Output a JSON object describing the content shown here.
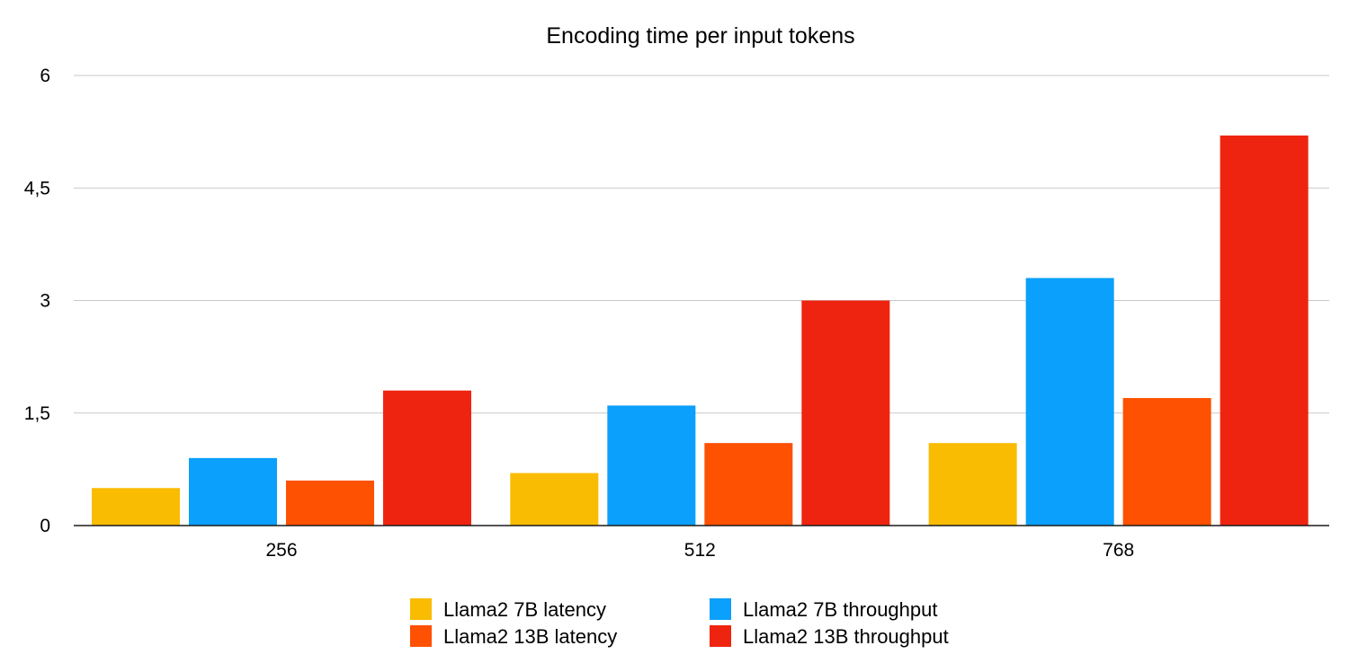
{
  "chart_data": {
    "type": "bar",
    "title": "Encoding time per input tokens",
    "xlabel": "",
    "ylabel": "",
    "categories": [
      "256",
      "512",
      "768"
    ],
    "ylim": [
      0,
      6
    ],
    "y_ticks": [
      {
        "value": 0,
        "label": "0"
      },
      {
        "value": 1.5,
        "label": "1,5"
      },
      {
        "value": 3,
        "label": "3"
      },
      {
        "value": 4.5,
        "label": "4,5"
      },
      {
        "value": 6,
        "label": "6"
      }
    ],
    "grid": true,
    "legend_position": "bottom",
    "series": [
      {
        "name": "Llama2 7B latency",
        "color": "#f9bc02",
        "values": [
          0.5,
          0.7,
          1.1
        ]
      },
      {
        "name": "Llama2 7B throughput",
        "color": "#0aa0fb",
        "values": [
          0.9,
          1.6,
          3.3
        ]
      },
      {
        "name": "Llama2 13B latency",
        "color": "#fe5101",
        "values": [
          0.6,
          1.1,
          1.7
        ]
      },
      {
        "name": "Llama2 13B throughput",
        "color": "#ef2410",
        "values": [
          1.8,
          3.0,
          5.2
        ]
      }
    ]
  }
}
